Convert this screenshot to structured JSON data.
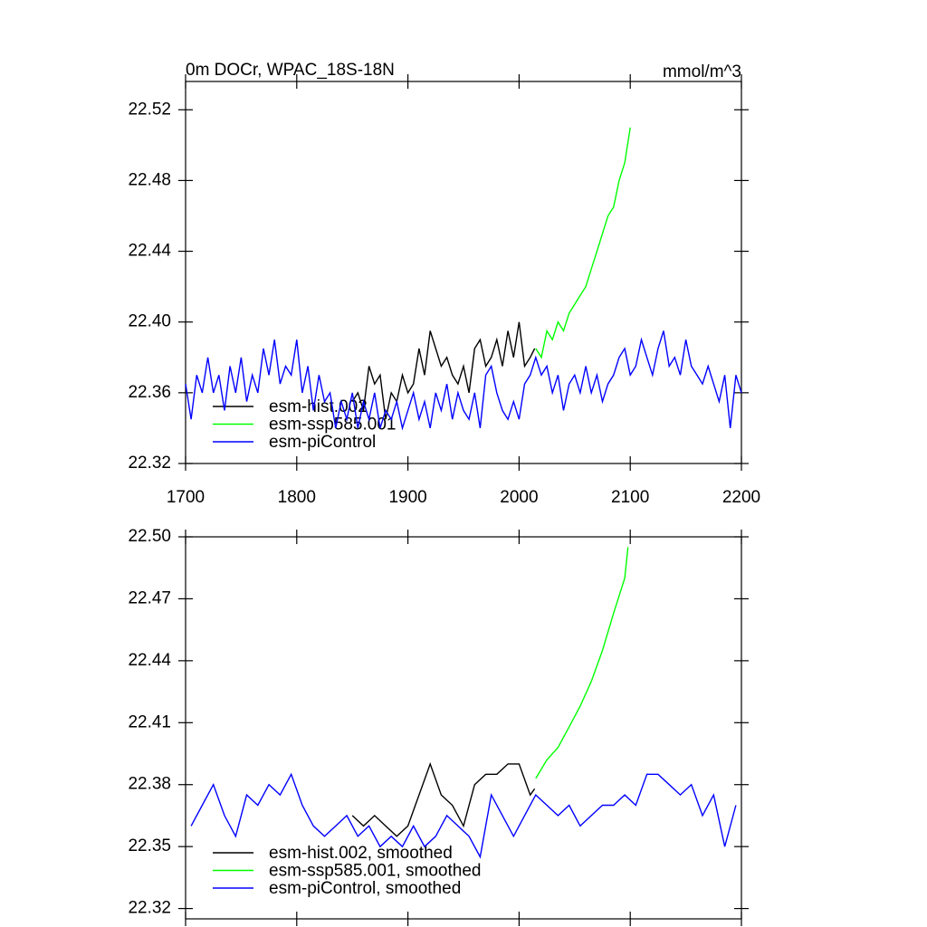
{
  "chart_data": [
    {
      "type": "line",
      "title": "0m DOCr, WPAC_18S-18N",
      "units": "mmol/m^3",
      "xlim": [
        1700,
        2200
      ],
      "xticks": [
        1700,
        1800,
        1900,
        2000,
        2100,
        2200
      ],
      "ylim": [
        22.32,
        22.536
      ],
      "yticks": [
        22.32,
        22.36,
        {
          "value": 22.4,
          "label": "22.40"
        },
        22.44,
        22.48,
        22.52
      ],
      "series": [
        {
          "name": "esm-hist.002",
          "color": "#000000",
          "x": [
            1850,
            1855,
            1860,
            1865,
            1870,
            1875,
            1880,
            1885,
            1890,
            1895,
            1900,
            1905,
            1910,
            1915,
            1920,
            1925,
            1930,
            1935,
            1940,
            1945,
            1950,
            1955,
            1960,
            1965,
            1970,
            1975,
            1980,
            1985,
            1990,
            1995,
            2000,
            2005,
            2010,
            2014
          ],
          "values": [
            22.355,
            22.36,
            22.35,
            22.375,
            22.365,
            22.37,
            22.345,
            22.36,
            22.355,
            22.37,
            22.36,
            22.365,
            22.385,
            22.37,
            22.395,
            22.385,
            22.375,
            22.38,
            22.37,
            22.365,
            22.375,
            22.36,
            22.385,
            22.39,
            22.375,
            22.38,
            22.39,
            22.375,
            22.395,
            22.38,
            22.4,
            22.375,
            22.38,
            22.385
          ]
        },
        {
          "name": "esm-ssp585.001",
          "color": "#00ff00",
          "x": [
            2015,
            2020,
            2025,
            2030,
            2035,
            2040,
            2045,
            2050,
            2055,
            2060,
            2065,
            2070,
            2075,
            2080,
            2085,
            2090,
            2095,
            2100
          ],
          "values": [
            22.385,
            22.38,
            22.395,
            22.39,
            22.4,
            22.395,
            22.405,
            22.41,
            22.415,
            22.42,
            22.43,
            22.44,
            22.45,
            22.46,
            22.465,
            22.48,
            22.49,
            22.51
          ]
        },
        {
          "name": "esm-piControl",
          "color": "#0000ff",
          "x": [
            1700,
            1705,
            1710,
            1715,
            1720,
            1725,
            1730,
            1735,
            1740,
            1745,
            1750,
            1755,
            1760,
            1765,
            1770,
            1775,
            1780,
            1785,
            1790,
            1795,
            1800,
            1805,
            1810,
            1815,
            1820,
            1825,
            1830,
            1835,
            1840,
            1845,
            1850,
            1855,
            1860,
            1865,
            1870,
            1875,
            1880,
            1885,
            1890,
            1895,
            1900,
            1905,
            1910,
            1915,
            1920,
            1925,
            1930,
            1935,
            1940,
            1945,
            1950,
            1955,
            1960,
            1965,
            1970,
            1975,
            1980,
            1985,
            1990,
            1995,
            2000,
            2005,
            2010,
            2015,
            2020,
            2025,
            2030,
            2035,
            2040,
            2045,
            2050,
            2055,
            2060,
            2065,
            2070,
            2075,
            2080,
            2085,
            2090,
            2095,
            2100,
            2105,
            2110,
            2115,
            2120,
            2125,
            2130,
            2135,
            2140,
            2145,
            2150,
            2155,
            2160,
            2165,
            2170,
            2175,
            2180,
            2185,
            2190,
            2195,
            2200
          ],
          "values": [
            22.365,
            22.345,
            22.37,
            22.36,
            22.38,
            22.36,
            22.37,
            22.35,
            22.375,
            22.36,
            22.38,
            22.355,
            22.37,
            22.36,
            22.385,
            22.37,
            22.39,
            22.365,
            22.375,
            22.37,
            22.39,
            22.36,
            22.375,
            22.35,
            22.37,
            22.355,
            22.36,
            22.34,
            22.355,
            22.345,
            22.36,
            22.34,
            22.355,
            22.345,
            22.36,
            22.34,
            22.35,
            22.345,
            22.355,
            22.34,
            22.35,
            22.36,
            22.345,
            22.355,
            22.34,
            22.36,
            22.35,
            22.365,
            22.345,
            22.36,
            22.35,
            22.345,
            22.36,
            22.34,
            22.37,
            22.375,
            22.36,
            22.35,
            22.345,
            22.355,
            22.345,
            22.365,
            22.37,
            22.38,
            22.37,
            22.375,
            22.36,
            22.37,
            22.35,
            22.365,
            22.37,
            22.36,
            22.375,
            22.36,
            22.37,
            22.355,
            22.365,
            22.37,
            22.38,
            22.385,
            22.37,
            22.375,
            22.39,
            22.38,
            22.37,
            22.385,
            22.395,
            22.375,
            22.38,
            22.37,
            22.39,
            22.375,
            22.37,
            22.365,
            22.375,
            22.365,
            22.355,
            22.37,
            22.34,
            22.37,
            22.36
          ]
        }
      ]
    },
    {
      "type": "line",
      "xlim": [
        1700,
        2200
      ],
      "xticks": [
        1700,
        1800,
        1900,
        2000,
        2100,
        2200
      ],
      "ylim": [
        22.315,
        22.5
      ],
      "yticks": [
        22.32,
        22.35,
        22.38,
        22.41,
        22.44,
        22.47,
        {
          "value": 22.5,
          "label": "22.50"
        }
      ],
      "series": [
        {
          "name": "esm-hist.002, smoothed",
          "color": "#000000",
          "x": [
            1850,
            1860,
            1870,
            1880,
            1890,
            1900,
            1910,
            1920,
            1930,
            1940,
            1950,
            1960,
            1970,
            1980,
            1990,
            2000,
            2010,
            2014
          ],
          "values": [
            22.365,
            22.36,
            22.365,
            22.36,
            22.355,
            22.36,
            22.375,
            22.39,
            22.375,
            22.37,
            22.36,
            22.38,
            22.385,
            22.385,
            22.39,
            22.39,
            22.375,
            22.378
          ]
        },
        {
          "name": "esm-ssp585.001, smoothed",
          "color": "#00ff00",
          "x": [
            2015,
            2025,
            2035,
            2045,
            2055,
            2065,
            2075,
            2085,
            2095,
            2098
          ],
          "values": [
            22.383,
            22.392,
            22.398,
            22.408,
            22.418,
            22.43,
            22.445,
            22.463,
            22.48,
            22.495
          ]
        },
        {
          "name": "esm-piControl, smoothed",
          "color": "#0000ff",
          "x": [
            1705,
            1715,
            1725,
            1735,
            1745,
            1755,
            1765,
            1775,
            1785,
            1795,
            1805,
            1815,
            1825,
            1835,
            1845,
            1855,
            1865,
            1875,
            1885,
            1895,
            1905,
            1915,
            1925,
            1935,
            1945,
            1955,
            1965,
            1975,
            1985,
            1995,
            2005,
            2015,
            2025,
            2035,
            2045,
            2055,
            2065,
            2075,
            2085,
            2095,
            2105,
            2115,
            2125,
            2135,
            2145,
            2155,
            2165,
            2175,
            2185,
            2195
          ],
          "values": [
            22.36,
            22.37,
            22.38,
            22.365,
            22.355,
            22.375,
            22.37,
            22.38,
            22.375,
            22.385,
            22.37,
            22.36,
            22.355,
            22.36,
            22.365,
            22.355,
            22.36,
            22.35,
            22.355,
            22.35,
            22.36,
            22.35,
            22.355,
            22.365,
            22.36,
            22.355,
            22.345,
            22.375,
            22.365,
            22.355,
            22.365,
            22.375,
            22.37,
            22.365,
            22.37,
            22.36,
            22.365,
            22.37,
            22.37,
            22.375,
            22.37,
            22.385,
            22.385,
            22.38,
            22.375,
            22.38,
            22.365,
            22.375,
            22.35,
            22.37
          ]
        }
      ]
    }
  ]
}
